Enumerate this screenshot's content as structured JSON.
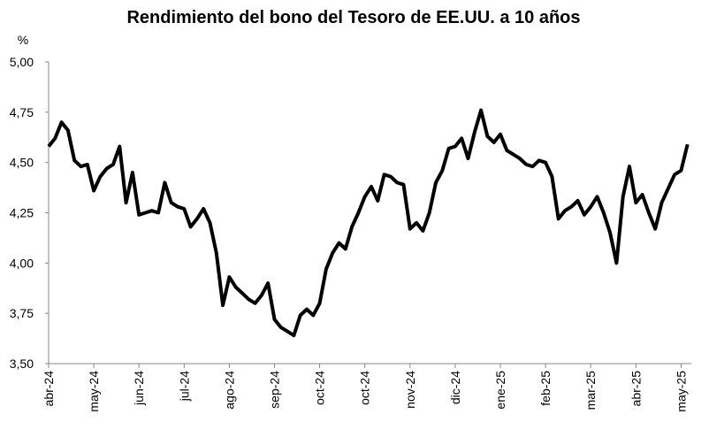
{
  "chart_data": {
    "type": "line",
    "title": "Rendimiento del bono del Tesoro de EE.UU. a 10 años",
    "y_label": "%",
    "categories": [
      "abr-24",
      null,
      null,
      null,
      null,
      null,
      null,
      "may-24",
      null,
      null,
      null,
      null,
      null,
      null,
      "jun-24",
      null,
      null,
      null,
      null,
      null,
      null,
      "jul-24",
      null,
      null,
      null,
      null,
      null,
      null,
      "ago-24",
      null,
      null,
      null,
      null,
      null,
      null,
      "sep-24",
      null,
      null,
      null,
      null,
      null,
      null,
      "oct-24",
      null,
      null,
      null,
      null,
      null,
      null,
      "oct-24",
      null,
      null,
      null,
      null,
      null,
      null,
      "nov-24",
      null,
      null,
      null,
      null,
      null,
      null,
      "dic-24",
      null,
      null,
      null,
      null,
      null,
      null,
      "ene-25",
      null,
      null,
      null,
      null,
      null,
      null,
      "feb-25",
      null,
      null,
      null,
      null,
      null,
      null,
      "mar-25",
      null,
      null,
      null,
      null,
      null,
      null,
      "abr-25",
      null,
      null,
      null,
      null,
      null,
      null,
      "may-25",
      null
    ],
    "series": [
      {
        "name": "Rendimiento",
        "color": "#000000",
        "values": [
          4.58,
          4.62,
          4.7,
          4.66,
          4.51,
          4.48,
          4.49,
          4.36,
          4.43,
          4.47,
          4.49,
          4.58,
          4.3,
          4.45,
          4.24,
          4.25,
          4.26,
          4.25,
          4.4,
          4.3,
          4.28,
          4.27,
          4.18,
          4.22,
          4.27,
          4.2,
          4.05,
          3.79,
          3.93,
          3.88,
          3.85,
          3.82,
          3.8,
          3.84,
          3.9,
          3.72,
          3.68,
          3.66,
          3.64,
          3.74,
          3.77,
          3.74,
          3.8,
          3.97,
          4.05,
          4.1,
          4.07,
          4.18,
          4.25,
          4.33,
          4.38,
          4.31,
          4.44,
          4.43,
          4.4,
          4.39,
          4.17,
          4.2,
          4.16,
          4.25,
          4.4,
          4.46,
          4.57,
          4.58,
          4.62,
          4.52,
          4.65,
          4.76,
          4.63,
          4.6,
          4.64,
          4.56,
          4.54,
          4.52,
          4.49,
          4.48,
          4.51,
          4.5,
          4.43,
          4.22,
          4.26,
          4.28,
          4.31,
          4.24,
          4.28,
          4.33,
          4.25,
          4.15,
          4.0,
          4.33,
          4.48,
          4.3,
          4.34,
          4.25,
          4.17,
          4.3,
          4.37,
          4.44,
          4.46,
          4.59
        ]
      }
    ],
    "ylim": [
      3.5,
      5.0
    ],
    "yticks": [
      {
        "value": 3.5,
        "label": "3,50"
      },
      {
        "value": 3.75,
        "label": "3,75"
      },
      {
        "value": 4.0,
        "label": "4,00"
      },
      {
        "value": 4.25,
        "label": "4,25"
      },
      {
        "value": 4.5,
        "label": "4,50"
      },
      {
        "value": 4.75,
        "label": "4,75"
      },
      {
        "value": 5.0,
        "label": "5,00"
      }
    ],
    "grid": false
  }
}
